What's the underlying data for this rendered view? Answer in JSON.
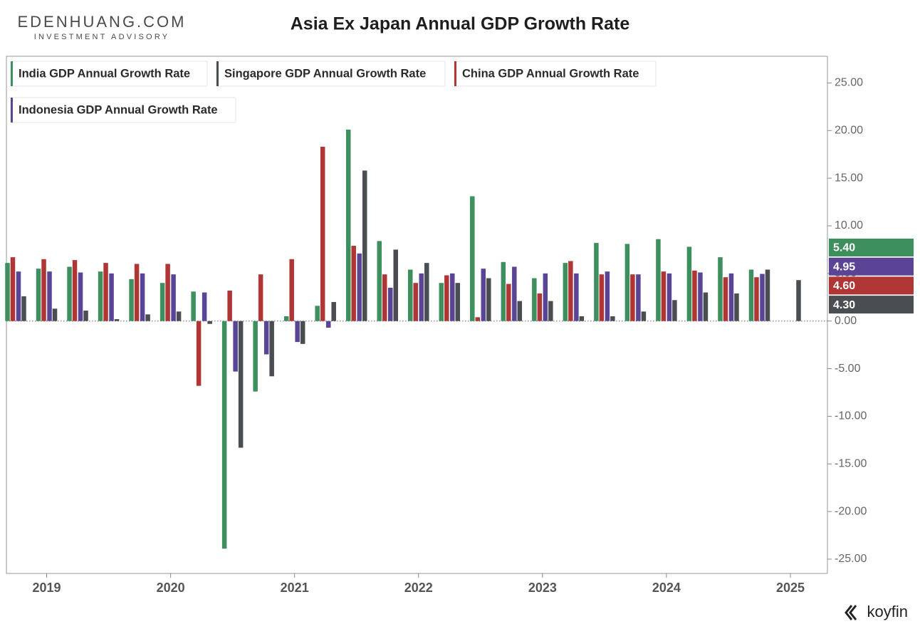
{
  "chart_data": {
    "type": "bar",
    "brand": "EDENHUANG.COM",
    "brand_sub": "INVESTMENT ADVISORY",
    "title": "Asia Ex Japan Annual GDP Growth Rate",
    "source": "koyfin",
    "categories": [
      null,
      "2019",
      null,
      null,
      null,
      "2020",
      null,
      null,
      null,
      "2021",
      null,
      null,
      null,
      "2022",
      null,
      null,
      null,
      "2023",
      null,
      null,
      null,
      "2024",
      null,
      null,
      null,
      "2025"
    ],
    "series": [
      {
        "name": "India GDP Annual Growth Rate",
        "color": "#3d8f5e",
        "last_label": "5.40",
        "values": [
          6.1,
          5.5,
          5.7,
          5.2,
          4.4,
          4.0,
          3.1,
          -23.9,
          -7.4,
          0.5,
          1.6,
          20.1,
          8.4,
          5.4,
          4.0,
          13.1,
          6.2,
          4.5,
          6.1,
          8.2,
          8.1,
          8.6,
          7.8,
          6.7,
          5.4,
          null
        ]
      },
      {
        "name": "Singapore GDP Annual Growth Rate",
        "color": "#4a4d52",
        "last_label": "4.30",
        "values": [
          2.6,
          1.3,
          1.1,
          0.2,
          0.7,
          1.0,
          -0.3,
          -13.3,
          -5.8,
          -2.4,
          2.0,
          15.8,
          7.5,
          6.1,
          4.0,
          4.5,
          2.1,
          2.1,
          0.5,
          0.5,
          1.0,
          2.2,
          3.0,
          2.9,
          5.4,
          4.3
        ]
      },
      {
        "name": "China GDP Annual Growth Rate",
        "color": "#b03636",
        "last_label": "4.60",
        "values": [
          6.7,
          6.5,
          6.4,
          6.1,
          6.0,
          6.0,
          -6.8,
          3.2,
          4.9,
          6.5,
          18.3,
          7.9,
          4.9,
          4.0,
          4.8,
          0.4,
          3.9,
          2.9,
          6.3,
          4.9,
          4.9,
          5.2,
          5.3,
          4.6,
          4.6,
          null
        ]
      },
      {
        "name": "Indonesia GDP Annual Growth Rate",
        "color": "#5a4496",
        "last_label": "4.95",
        "values": [
          5.2,
          5.2,
          5.1,
          5.0,
          5.0,
          4.9,
          3.0,
          -5.3,
          -3.5,
          -2.2,
          -0.7,
          7.1,
          3.5,
          5.0,
          5.0,
          5.5,
          5.7,
          5.0,
          5.0,
          5.2,
          4.9,
          5.0,
          5.1,
          5.0,
          4.95,
          null
        ]
      }
    ],
    "ylim": [
      -26.5,
      27.8
    ],
    "yticks": [
      {
        "value": -25,
        "label": "-25.00"
      },
      {
        "value": -20,
        "label": "-20.00"
      },
      {
        "value": -15,
        "label": "-15.00"
      },
      {
        "value": -10,
        "label": "-10.00"
      },
      {
        "value": -5,
        "label": "-5.00"
      },
      {
        "value": 0,
        "label": "0.00"
      },
      {
        "value": 5,
        "label": "5.00"
      },
      {
        "value": 10,
        "label": "10.00"
      },
      {
        "value": 15,
        "label": "15.00"
      },
      {
        "value": 20,
        "label": "20.00"
      },
      {
        "value": 25,
        "label": "25.00"
      }
    ]
  }
}
